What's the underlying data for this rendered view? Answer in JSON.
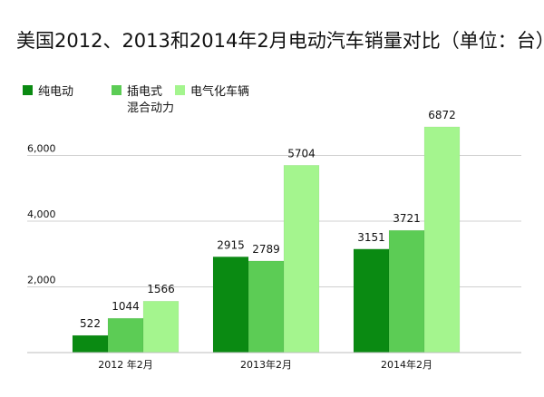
{
  "chart_data": {
    "type": "bar",
    "title": "美国2012、2013和2014年2月电动汽车销量对比（单位：台）",
    "xlabel": "",
    "ylabel": "",
    "categories": [
      "2012 年2月",
      "2013年2月",
      "2014年2月"
    ],
    "series": [
      {
        "name": "纯电动",
        "color": "#0a8a12",
        "values": [
          522,
          2915,
          3151
        ]
      },
      {
        "name": "插电式混合动力",
        "color": "#5ccc55",
        "values": [
          1044,
          2789,
          3721
        ]
      },
      {
        "name": "电气化车辆",
        "color": "#a4f58e",
        "values": [
          1566,
          5704,
          6872
        ]
      }
    ],
    "yticks": [
      "2,000",
      "4,000",
      "6,000"
    ],
    "ylim": [
      0,
      7200
    ],
    "grid": true,
    "legend_position": "top-left"
  }
}
